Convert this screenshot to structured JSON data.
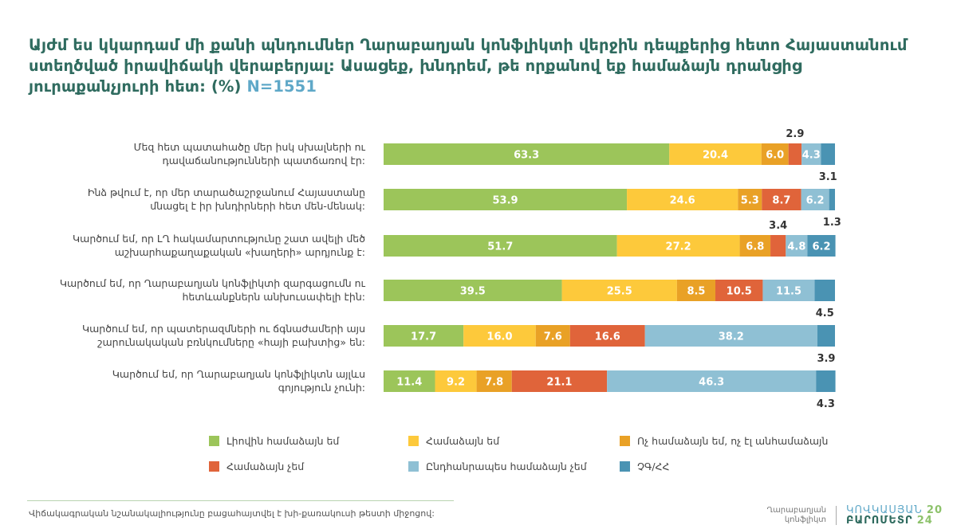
{
  "title": {
    "text": "Այժմ ես կկարդամ մի քանի պնդումներ Ղարաբաղյան կոնֆլիկտի վերջին դեպքերից հետո Հայաստանում ստեղծված իրավիճակի վերաբերյալ: Ասացեք, խնդրեմ, թե որքանով եք համաձայն դրանցից յուրաքանչյուրի հետ: (%)",
    "n": "N=1551"
  },
  "chart_data": {
    "type": "bar",
    "orientation": "horizontal",
    "stacked": true,
    "xlim": [
      0,
      100
    ],
    "categories": [
      "Մեզ հետ պատահածը մեր իսկ սխալների ու դավաճանությունների պատճառով էր:",
      "Ինձ թվում է, որ մեր տարածաշրջանում Հայաստանը մնացել է իր խնդիրների հետ մեն-մենակ:",
      "Կարծում եմ, որ ԼՂ հակամարտությունը շատ ավելի մեծ աշխարհաքաղաքական «խաղերի» արդյունք է:",
      "Կարծում եմ, որ Ղարաբաղյան կոնֆլիկտի զարգացումն ու հետևանքներն անխուսափելի էին:",
      "Կարծում եմ, որ պատերազմների ու ճգնաժամերի այս շարունակական բռնկումները «հայի բախտից» են:",
      "Կարծում եմ, որ Ղարաբաղյան կոնֆլիկտն այլևս գոյություն չունի:"
    ],
    "category_lines": [
      [
        "Մեզ հետ պատահածը մեր իսկ սխալների ու",
        "դավաճանությունների պատճառով էր:"
      ],
      [
        "Ինձ թվում է, որ մեր տարածաշրջանում Հայաստանը",
        "մնացել է իր խնդիրների հետ մեն-մենակ:"
      ],
      [
        "Կարծում եմ, որ ԼՂ հակամարտությունը շատ ավելի մեծ",
        "աշխարհաքաղաքական «խաղերի» արդյունք է:"
      ],
      [
        "Կարծում եմ, որ Ղարաբաղյան կոնֆլիկտի զարգացումն ու",
        "հետևանքներն անխուսափելի էին:"
      ],
      [
        "Կարծում եմ, որ պատերազմների ու ճգնաժամերի այս",
        "շարունակական բռնկումները «հայի բախտից» են:"
      ],
      [
        "Կարծում եմ, որ Ղարաբաղյան կոնֆլիկտն այլևս",
        "գոյություն չունի:"
      ]
    ],
    "series": [
      {
        "name": "Լիովին համաձայն եմ",
        "color": "#9cc55a",
        "values": [
          63.3,
          53.9,
          51.7,
          39.5,
          17.7,
          11.4
        ]
      },
      {
        "name": "Համաձայն եմ",
        "color": "#fdc93b",
        "values": [
          20.4,
          24.6,
          27.2,
          25.5,
          16.0,
          9.2
        ]
      },
      {
        "name": "Ոչ համաձայն եմ, ոչ էլ անհամաձայն",
        "color": "#e9a126",
        "values": [
          6.0,
          5.3,
          6.8,
          8.5,
          7.6,
          7.8
        ]
      },
      {
        "name": "Համաձայն չեմ",
        "color": "#e0643a",
        "values": [
          2.9,
          8.7,
          3.4,
          10.5,
          16.6,
          21.1
        ]
      },
      {
        "name": "Ընդհանրապես համաձայն չեմ",
        "color": "#8fc0d4",
        "values": [
          4.3,
          6.2,
          4.8,
          11.5,
          38.2,
          46.3
        ]
      },
      {
        "name": "ՉԳ/ՀՀ",
        "color": "#4a93b3",
        "values": [
          3.1,
          1.3,
          6.2,
          4.5,
          3.9,
          4.3
        ]
      }
    ],
    "outside_labels": [
      {
        "row": 0,
        "series": 3,
        "position": "above"
      },
      {
        "row": 0,
        "series": 5,
        "position": "below"
      },
      {
        "row": 1,
        "series": 5,
        "position": "below"
      },
      {
        "row": 2,
        "series": 3,
        "position": "above"
      },
      {
        "row": 3,
        "series": 5,
        "position": "below"
      },
      {
        "row": 4,
        "series": 5,
        "position": "below"
      },
      {
        "row": 5,
        "series": 5,
        "position": "below"
      }
    ],
    "legend_placement": "bottom",
    "grid": false
  },
  "footer": {
    "note": "Վիճակագրական նշանակալիությունը բացահայտվել է խի-քառակուսի թեստի միջոցով:",
    "topic_line1": "Ղարաբաղյան",
    "topic_line2": "կոնֆլիկտ",
    "logo_line1": "ԿՈՎԿԱՍՅԱՆ",
    "logo_line2": "ԲԱՐՈՄԵՏՐ",
    "year_top": "20",
    "year_bottom": "24"
  }
}
